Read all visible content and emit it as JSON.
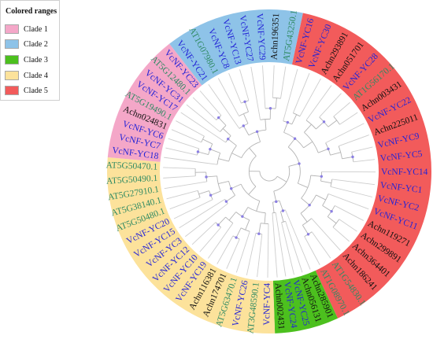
{
  "legend_title": "Colored ranges",
  "leaf_text_colors": {
    "VcNF": "#2323d6",
    "Achn": "#111111",
    "AT": "#2f8a63"
  },
  "clades": [
    {
      "label": "Clade 1",
      "color": "#F4A7C8",
      "leaves": [
        "VcNF-YC18",
        "VcNF-YC7",
        "VcNF-YC6",
        "Achn024831",
        "AT5G19490.1",
        "VcNF-YC17",
        "VcNF-YC31",
        "AT5G12480.1",
        "VcNF-YC23"
      ]
    },
    {
      "label": "Clade 2",
      "color": "#8EC3E8",
      "leaves": [
        "VcNF-YC21",
        "AT1G07980.1",
        "VcNF-YC8",
        "VcNF-YC13",
        "VcNF-YC27",
        "VcNF-YC29",
        "Achn196351",
        "AT5G43250.1"
      ]
    },
    {
      "label": "Clade 3",
      "color": "#4CC01E",
      "leaves": [
        "Achn285901",
        "Achn056131",
        "VcNF-YC25",
        "VcNF-YC24",
        "Achn002431"
      ]
    },
    {
      "label": "Clade 4",
      "color": "#FCE29B",
      "leaves": [
        "VcNF-YC4",
        "AT3G48590.1",
        "VcNF-YC26",
        "AT5G63470.1",
        "Achn174701",
        "Achn116381",
        "VcNF-YC19",
        "VcNF-YC10",
        "VcNF-YC12",
        "VcNF-YC3",
        "VcNF-YC15",
        "VcNF-YC20",
        "AT5G50480.1",
        "AT5G38140.1",
        "AT5G27910.1",
        "AT5G50490.1",
        "AT5G50470.1"
      ]
    },
    {
      "label": "Clade 5",
      "color": "#F25B5B",
      "leaves": [
        "VcNF-YC16",
        "VcNF-YC30",
        "Achn293891",
        "Achn051701",
        "VcNF-YC28",
        "AT1G56170.1",
        "Achn003431",
        "VcNF-YC22",
        "Achn225011",
        "VcNF-YC9",
        "VcNF-YC5",
        "VcNF-YC14",
        "VcNF-YC1",
        "VcNF-YC2",
        "VcNF-YC11",
        "Achn119271",
        "Achn299891",
        "Achn364401",
        "Achn186241",
        "AT1G54830.1",
        "AT1G08970.1"
      ]
    }
  ]
}
